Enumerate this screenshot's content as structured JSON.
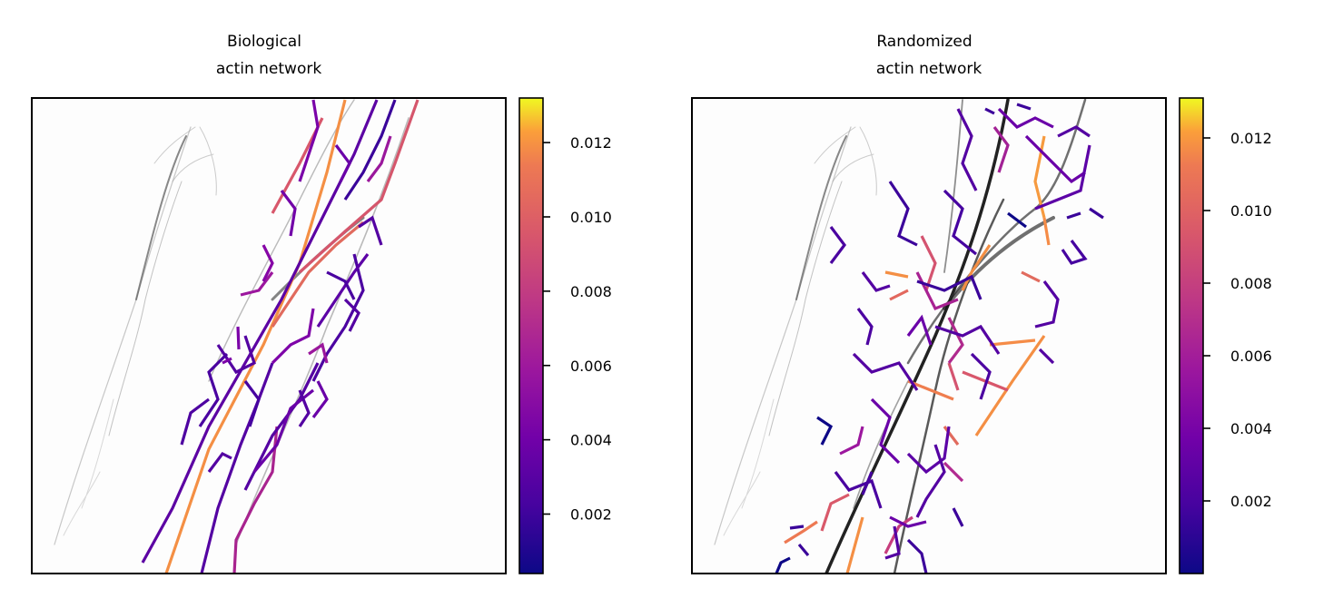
{
  "chart_data": [
    {
      "type": "network",
      "title_line1": "Biological",
      "title_line2": "actin network",
      "xlabel": "",
      "ylabel": "",
      "grid": false,
      "colormap": "plasma",
      "colorbar": {
        "range": [
          0.0004,
          0.0132
        ],
        "ticks": [
          "0.002",
          "0.004",
          "0.006",
          "0.008",
          "0.010",
          "0.012"
        ],
        "tick_values": [
          0.002,
          0.004,
          0.006,
          0.008,
          0.01,
          0.012
        ]
      }
    },
    {
      "type": "network",
      "title_line1": "Randomized",
      "title_line2": "actin network",
      "xlabel": "",
      "ylabel": "",
      "grid": false,
      "colormap": "plasma",
      "colorbar": {
        "range": [
          0.0,
          0.0131
        ],
        "ticks": [
          "0.002",
          "0.004",
          "0.006",
          "0.008",
          "0.010",
          "0.012"
        ],
        "tick_values": [
          0.002,
          0.004,
          0.006,
          0.008,
          0.01,
          0.012
        ]
      }
    }
  ]
}
